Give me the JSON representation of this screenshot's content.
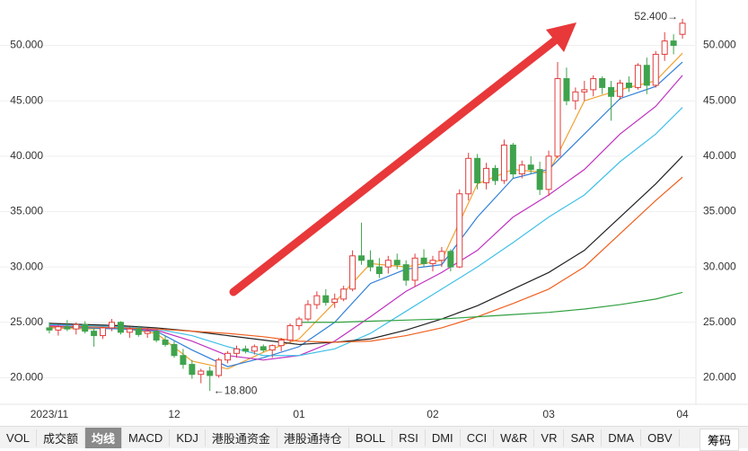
{
  "chart_data": {
    "type": "candlestick",
    "categories": [
      "2023/11",
      null,
      null,
      null,
      null,
      null,
      null,
      null,
      null,
      null,
      null,
      null,
      null,
      null,
      "12",
      null,
      null,
      null,
      null,
      null,
      null,
      null,
      null,
      null,
      null,
      null,
      null,
      null,
      "01",
      null,
      null,
      null,
      null,
      null,
      null,
      null,
      null,
      null,
      null,
      null,
      null,
      null,
      null,
      "02",
      null,
      null,
      null,
      null,
      null,
      null,
      null,
      null,
      null,
      null,
      null,
      null,
      "03",
      null,
      null,
      null,
      null,
      null,
      null,
      null,
      null,
      null,
      null,
      null,
      null,
      null,
      null,
      "04"
    ],
    "open": [
      24.5,
      24.3,
      24.6,
      24.4,
      24.8,
      24.2,
      23.8,
      24.5,
      25.0,
      24.1,
      24.4,
      24.0,
      24.2,
      23.4,
      23.0,
      22.0,
      21.2,
      20.3,
      20.6,
      20.2,
      21.6,
      22.2,
      22.6,
      22.4,
      22.8,
      22.5,
      22.9,
      23.4,
      24.7,
      25.3,
      26.6,
      27.4,
      26.8,
      27.1,
      28.0,
      31.0,
      30.6,
      30.0,
      30.0,
      30.6,
      30.2,
      28.8,
      30.8,
      30.3,
      30.6,
      31.4,
      30.0,
      36.6,
      39.8,
      37.6,
      38.9,
      37.8,
      41.0,
      38.4,
      39.2,
      38.8,
      37.0,
      40.0,
      47.0,
      45.0,
      45.8,
      46.0,
      47.0,
      46.2,
      45.4,
      46.6,
      46.2,
      48.2,
      46.4,
      49.2,
      50.4,
      51.0
    ],
    "high": [
      25.0,
      24.8,
      25.2,
      25.0,
      25.1,
      24.5,
      24.6,
      25.3,
      25.1,
      24.6,
      24.7,
      24.5,
      24.3,
      23.8,
      23.3,
      22.6,
      21.6,
      20.8,
      21.0,
      21.8,
      22.4,
      22.9,
      22.9,
      23.0,
      23.0,
      23.0,
      23.6,
      24.9,
      25.5,
      27.0,
      27.8,
      28.0,
      27.6,
      28.3,
      31.5,
      34.0,
      31.5,
      30.8,
      31.0,
      31.2,
      30.6,
      31.2,
      31.6,
      31.0,
      31.8,
      31.6,
      37.0,
      40.3,
      40.2,
      39.4,
      39.2,
      41.5,
      41.2,
      39.6,
      40.0,
      39.5,
      40.5,
      48.5,
      48.0,
      46.2,
      46.8,
      47.3,
      47.2,
      46.8,
      46.9,
      47.2,
      48.4,
      48.9,
      49.5,
      51.2,
      51.0,
      52.4
    ],
    "low": [
      24.0,
      23.8,
      24.2,
      23.9,
      24.0,
      22.8,
      23.5,
      24.2,
      23.9,
      23.6,
      23.7,
      23.6,
      23.2,
      22.8,
      21.8,
      20.8,
      19.9,
      19.5,
      18.8,
      20.0,
      21.3,
      21.8,
      22.2,
      22.1,
      22.3,
      21.8,
      22.4,
      23.2,
      24.3,
      25.1,
      26.2,
      26.5,
      26.3,
      26.9,
      27.8,
      30.2,
      29.6,
      29.0,
      29.4,
      29.8,
      28.3,
      28.2,
      30.0,
      29.6,
      30.0,
      29.6,
      29.9,
      36.0,
      37.0,
      37.0,
      37.4,
      37.5,
      38.0,
      38.0,
      38.4,
      36.5,
      36.4,
      39.8,
      44.6,
      44.2,
      45.0,
      45.4,
      45.6,
      43.2,
      45.1,
      45.8,
      46.0,
      45.6,
      46.2,
      48.6,
      49.2,
      50.6
    ],
    "close": [
      24.3,
      24.6,
      24.4,
      24.8,
      24.2,
      23.8,
      24.5,
      25.0,
      24.1,
      24.4,
      23.9,
      24.2,
      23.4,
      23.0,
      22.0,
      21.2,
      20.3,
      20.6,
      20.2,
      21.6,
      22.2,
      22.6,
      22.4,
      22.8,
      22.5,
      22.9,
      23.4,
      24.7,
      25.3,
      26.6,
      27.4,
      26.8,
      27.1,
      28.0,
      31.0,
      30.6,
      30.0,
      29.4,
      30.6,
      30.2,
      28.8,
      30.8,
      30.3,
      30.6,
      31.4,
      30.0,
      36.6,
      39.8,
      37.6,
      38.9,
      37.8,
      41.0,
      38.4,
      39.2,
      38.8,
      37.0,
      40.0,
      47.0,
      45.0,
      45.8,
      46.0,
      47.0,
      46.2,
      45.4,
      46.6,
      46.2,
      48.2,
      46.4,
      49.2,
      50.4,
      50.0,
      52.0
    ],
    "up_color": "#e03c3c",
    "down_color": "#3fa34d",
    "ma_x": [
      0,
      4,
      8,
      12,
      16,
      20,
      24,
      28,
      32,
      36,
      40,
      44,
      48,
      52,
      56,
      60,
      64,
      68,
      71
    ],
    "lines": [
      {
        "color": "#f0a030",
        "values": [
          24.5,
          24.4,
          24.5,
          24.0,
          21.5,
          20.8,
          22.3,
          23.5,
          26.8,
          30.3,
          30.0,
          30.6,
          37.5,
          38.8,
          38.5,
          45.0,
          46.0,
          46.8,
          49.3
        ]
      },
      {
        "color": "#2f7fd8",
        "values": [
          24.6,
          24.5,
          24.4,
          24.2,
          22.5,
          21.0,
          21.8,
          22.8,
          25.0,
          28.5,
          29.8,
          30.2,
          34.5,
          38.0,
          38.8,
          42.0,
          45.2,
          46.3,
          48.5
        ]
      },
      {
        "color": "#c030c0",
        "values": [
          24.7,
          24.6,
          24.5,
          24.3,
          23.3,
          22.0,
          21.6,
          22.0,
          23.3,
          25.5,
          27.8,
          29.5,
          31.5,
          34.5,
          36.5,
          38.8,
          42.0,
          44.5,
          47.3
        ]
      },
      {
        "color": "#40c0e8",
        "values": [
          24.8,
          24.7,
          24.6,
          24.4,
          23.8,
          22.8,
          22.0,
          22.0,
          22.6,
          24.0,
          26.0,
          28.0,
          30.0,
          32.2,
          34.5,
          36.5,
          39.5,
          42.0,
          44.4
        ]
      },
      {
        "color": "#222222",
        "values": [
          24.9,
          24.8,
          24.7,
          24.5,
          24.2,
          23.8,
          23.4,
          23.0,
          23.2,
          23.5,
          24.3,
          25.3,
          26.5,
          28.0,
          29.5,
          31.5,
          34.5,
          37.5,
          40.0
        ]
      },
      {
        "color": "#f06020",
        "values": [
          24.6,
          24.6,
          24.5,
          24.4,
          24.2,
          24.0,
          23.7,
          23.3,
          23.2,
          23.3,
          23.8,
          24.5,
          25.5,
          26.7,
          28.0,
          30.0,
          33.0,
          36.0,
          38.1
        ]
      },
      {
        "color": "#30a040",
        "values": [
          null,
          null,
          null,
          null,
          null,
          null,
          null,
          25.0,
          25.0,
          25.1,
          25.2,
          25.3,
          25.5,
          25.7,
          25.9,
          26.2,
          26.6,
          27.1,
          27.7
        ]
      }
    ],
    "ylim": [
      17.6,
      54.1
    ],
    "yticks": [
      {
        "value": 20,
        "label": "20.000"
      },
      {
        "value": 25,
        "label": "25.000"
      },
      {
        "value": 30,
        "label": "30.000"
      },
      {
        "value": 35,
        "label": "35.000"
      },
      {
        "value": 40,
        "label": "40.000"
      },
      {
        "value": 45,
        "label": "45.000"
      },
      {
        "value": 50,
        "label": "50.000"
      }
    ],
    "grid": true,
    "annotations": [
      {
        "value": 52.4,
        "label": "52.400→"
      },
      {
        "value": 18.8,
        "label": "←18.800"
      }
    ]
  },
  "tabs": [
    "VOL",
    "成交额",
    "均线",
    "MACD",
    "KDJ",
    "港股通资金",
    "港股通持仓",
    "BOLL",
    "RSI",
    "DMI",
    "CCI",
    "W&R",
    "VR",
    "SAR",
    "DMA",
    "OBV"
  ],
  "selected_tab": 2,
  "side_tab": "筹码"
}
